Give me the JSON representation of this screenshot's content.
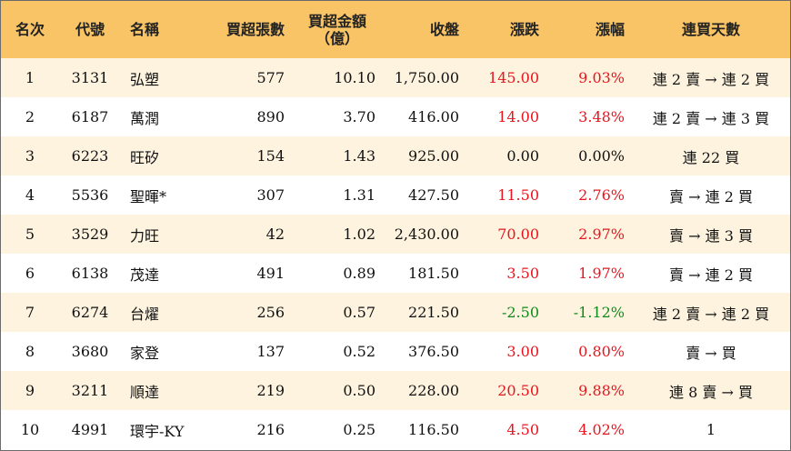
{
  "headers": {
    "rank": "名次",
    "code": "代號",
    "name": "名稱",
    "net_buy_lots": "買超張數",
    "net_buy_amount_line1": "買超金額",
    "net_buy_amount_line2": "（億）",
    "close": "收盤",
    "change": "漲跌",
    "change_pct": "漲幅",
    "streak": "連買天數"
  },
  "rows": [
    {
      "rank": "1",
      "code": "3131",
      "name": "弘塑",
      "lots": "577",
      "amount": "10.10",
      "close": "1,750.00",
      "change": "145.00",
      "pct": "9.03%",
      "streak": "連 2 賣 → 連 2 買",
      "dir": "up"
    },
    {
      "rank": "2",
      "code": "6187",
      "name": "萬潤",
      "lots": "890",
      "amount": "3.70",
      "close": "416.00",
      "change": "14.00",
      "pct": "3.48%",
      "streak": "連 2 賣 → 連 3 買",
      "dir": "up"
    },
    {
      "rank": "3",
      "code": "6223",
      "name": "旺矽",
      "lots": "154",
      "amount": "1.43",
      "close": "925.00",
      "change": "0.00",
      "pct": "0.00%",
      "streak": "連 22 買",
      "dir": "flat"
    },
    {
      "rank": "4",
      "code": "5536",
      "name": "聖暉*",
      "lots": "307",
      "amount": "1.31",
      "close": "427.50",
      "change": "11.50",
      "pct": "2.76%",
      "streak": "賣 → 連 2 買",
      "dir": "up"
    },
    {
      "rank": "5",
      "code": "3529",
      "name": "力旺",
      "lots": "42",
      "amount": "1.02",
      "close": "2,430.00",
      "change": "70.00",
      "pct": "2.97%",
      "streak": "賣 → 連 3 買",
      "dir": "up"
    },
    {
      "rank": "6",
      "code": "6138",
      "name": "茂達",
      "lots": "491",
      "amount": "0.89",
      "close": "181.50",
      "change": "3.50",
      "pct": "1.97%",
      "streak": "賣 → 連 2 買",
      "dir": "up"
    },
    {
      "rank": "7",
      "code": "6274",
      "name": "台燿",
      "lots": "256",
      "amount": "0.57",
      "close": "221.50",
      "change": "-2.50",
      "pct": "-1.12%",
      "streak": "連 2 賣 → 連 2 買",
      "dir": "down"
    },
    {
      "rank": "8",
      "code": "3680",
      "name": "家登",
      "lots": "137",
      "amount": "0.52",
      "close": "376.50",
      "change": "3.00",
      "pct": "0.80%",
      "streak": "賣 → 買",
      "dir": "up"
    },
    {
      "rank": "9",
      "code": "3211",
      "name": "順達",
      "lots": "219",
      "amount": "0.50",
      "close": "228.00",
      "change": "20.50",
      "pct": "9.88%",
      "streak": "連 8 賣 → 買",
      "dir": "up"
    },
    {
      "rank": "10",
      "code": "4991",
      "name": "環宇-KY",
      "lots": "216",
      "amount": "0.25",
      "close": "116.50",
      "change": "4.50",
      "pct": "4.02%",
      "streak": "1",
      "dir": "up"
    }
  ],
  "colors": {
    "header_bg": "#f9c466",
    "stripe_bg": "#fdf3df",
    "up": "#e8141e",
    "down": "#0f8a1a",
    "flat": "#111111"
  }
}
